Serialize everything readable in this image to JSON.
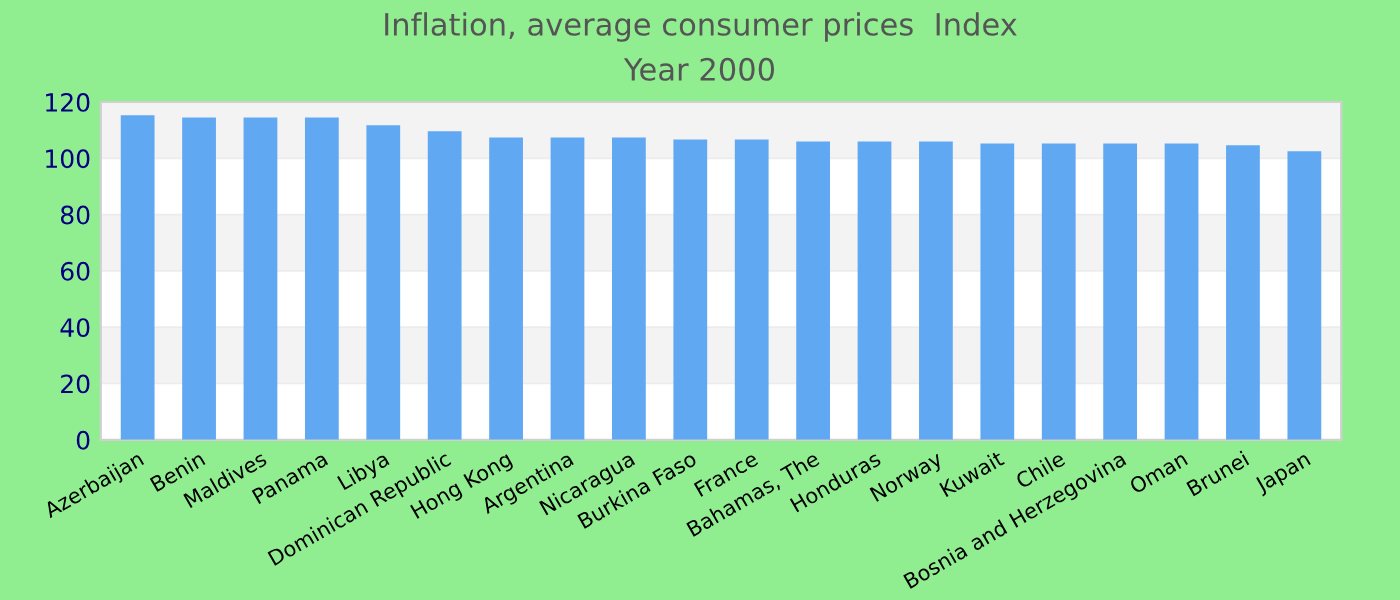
{
  "chart_data": {
    "type": "bar",
    "title": "Inflation, average consumer prices  Index",
    "subtitle": "Year 2000",
    "categories": [
      "Azerbaijan",
      "Benin",
      "Maldives",
      "Panama",
      "Libya",
      "Dominican Republic",
      "Hong Kong",
      "Argentina",
      "Nicaragua",
      "Burkina Faso",
      "France",
      "Bahamas, The",
      "Honduras",
      "Norway",
      "Kuwait",
      "Chile",
      "Bosnia and Herzegovina",
      "Oman",
      "Brunei",
      "Japan"
    ],
    "values": [
      115.3,
      114.5,
      114.5,
      114.5,
      111.7,
      109.6,
      107.4,
      107.4,
      107.4,
      106.7,
      106.7,
      106.0,
      106.0,
      106.0,
      105.3,
      105.3,
      105.3,
      105.3,
      104.6,
      102.5
    ],
    "color": "#61a8f3",
    "ylim": [
      0,
      120
    ],
    "yticks": [
      0,
      20,
      40,
      60,
      80,
      100,
      120
    ],
    "grid": "y"
  }
}
